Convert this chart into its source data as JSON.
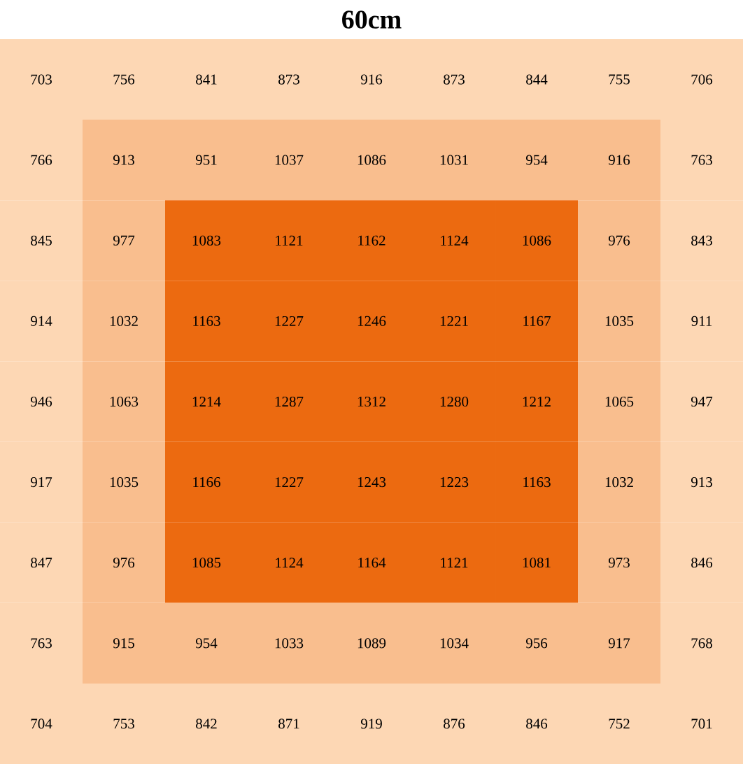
{
  "chart_data": {
    "type": "heatmap",
    "title": "60cm",
    "data_labels": true,
    "categories": [
      null,
      null,
      null,
      null,
      null,
      null,
      null,
      null,
      null
    ],
    "y_categories": [
      null,
      null,
      null,
      null,
      null,
      null,
      null,
      null,
      null
    ],
    "cells": [
      [
        703,
        756,
        841,
        873,
        916,
        873,
        844,
        755,
        706
      ],
      [
        766,
        913,
        951,
        1037,
        1086,
        1031,
        954,
        916,
        763
      ],
      [
        845,
        977,
        1083,
        1121,
        1162,
        1124,
        1086,
        976,
        843
      ],
      [
        914,
        1032,
        1163,
        1227,
        1246,
        1221,
        1167,
        1035,
        911
      ],
      [
        946,
        1063,
        1214,
        1287,
        1312,
        1280,
        1212,
        1065,
        947
      ],
      [
        917,
        1035,
        1166,
        1227,
        1243,
        1223,
        1163,
        1032,
        913
      ],
      [
        847,
        976,
        1085,
        1124,
        1164,
        1121,
        1081,
        973,
        846
      ],
      [
        763,
        915,
        954,
        1033,
        1089,
        1034,
        956,
        917,
        768
      ],
      [
        704,
        753,
        842,
        871,
        919,
        876,
        846,
        752,
        701
      ]
    ],
    "colors": [
      [
        "#fdd7b4",
        "#fdd7b4",
        "#fdd7b4",
        "#fdd7b4",
        "#fdd7b4",
        "#fdd7b4",
        "#fdd7b4",
        "#fdd7b4",
        "#fdd7b4"
      ],
      [
        "#fdd7b4",
        "#f9be8e",
        "#f9be8e",
        "#f9be8e",
        "#f9be8e",
        "#f9be8e",
        "#f9be8e",
        "#f9be8e",
        "#fdd7b4"
      ],
      [
        "#fdd7b4",
        "#f9be8e",
        "#ec6a10",
        "#ec6a10",
        "#ec6a10",
        "#ec6a10",
        "#ec6a10",
        "#f9be8e",
        "#fdd7b4"
      ],
      [
        "#fdd7b4",
        "#f9be8e",
        "#ec6a10",
        "#ec6a10",
        "#ec6a10",
        "#ec6a10",
        "#ec6a10",
        "#f9be8e",
        "#fdd7b4"
      ],
      [
        "#fdd7b4",
        "#f9be8e",
        "#ec6a10",
        "#ec6a10",
        "#ec6a10",
        "#ec6a10",
        "#ec6a10",
        "#f9be8e",
        "#fdd7b4"
      ],
      [
        "#fdd7b4",
        "#f9be8e",
        "#ec6a10",
        "#ec6a10",
        "#ec6a10",
        "#ec6a10",
        "#ec6a10",
        "#f9be8e",
        "#fdd7b4"
      ],
      [
        "#fdd7b4",
        "#f9be8e",
        "#ec6a10",
        "#ec6a10",
        "#ec6a10",
        "#ec6a10",
        "#ec6a10",
        "#f9be8e",
        "#fdd7b4"
      ],
      [
        "#fdd7b4",
        "#f9be8e",
        "#f9be8e",
        "#f9be8e",
        "#f9be8e",
        "#f9be8e",
        "#f9be8e",
        "#f9be8e",
        "#fdd7b4"
      ],
      [
        "#fdd7b4",
        "#fdd7b4",
        "#fdd7b4",
        "#fdd7b4",
        "#fdd7b4",
        "#fdd7b4",
        "#fdd7b4",
        "#fdd7b4",
        "#fdd7b4"
      ]
    ]
  }
}
